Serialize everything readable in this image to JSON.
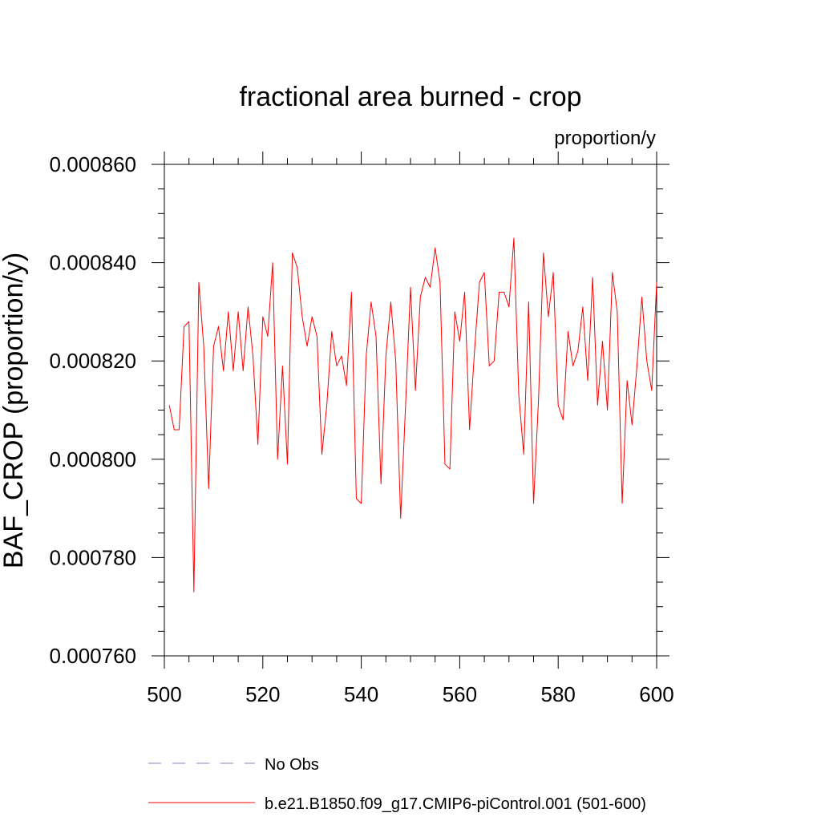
{
  "chart_data": {
    "type": "line",
    "title": "fractional area burned - crop",
    "units_label": "proportion/y",
    "ylabel": "BAF_CROP  (proportion/y)",
    "xlabel": "",
    "xlim": [
      500,
      600
    ],
    "ylim": [
      0.00076,
      0.00086
    ],
    "x_ticks": [
      500,
      520,
      540,
      560,
      580,
      600
    ],
    "x_tick_labels": [
      "500",
      "520",
      "540",
      "560",
      "580",
      "600"
    ],
    "y_ticks": [
      0.00076,
      0.00078,
      0.0008,
      0.00082,
      0.00084,
      0.00086
    ],
    "y_tick_labels": [
      "0.000760",
      "0.000780",
      "0.000800",
      "0.000820",
      "0.000840",
      "0.000860"
    ],
    "grid": false,
    "legend_position": "bottom",
    "series": [
      {
        "name": "No Obs",
        "color": "#8080c0",
        "dashed": true,
        "values": []
      },
      {
        "name": "b.e21.B1850.f09_g17.CMIP6-piControl.001 (501-600)",
        "color": "#ff0000",
        "dashed": false,
        "x": [
          501,
          502,
          503,
          504,
          505,
          506,
          507,
          508,
          509,
          510,
          511,
          512,
          513,
          514,
          515,
          516,
          517,
          518,
          519,
          520,
          521,
          522,
          523,
          524,
          525,
          526,
          527,
          528,
          529,
          530,
          531,
          532,
          533,
          534,
          535,
          536,
          537,
          538,
          539,
          540,
          541,
          542,
          543,
          544,
          545,
          546,
          547,
          548,
          549,
          550,
          551,
          552,
          553,
          554,
          555,
          556,
          557,
          558,
          559,
          560,
          561,
          562,
          563,
          564,
          565,
          566,
          567,
          568,
          569,
          570,
          571,
          572,
          573,
          574,
          575,
          576,
          577,
          578,
          579,
          580,
          581,
          582,
          583,
          584,
          585,
          586,
          587,
          588,
          589,
          590,
          591,
          592,
          593,
          594,
          595,
          596,
          597,
          598,
          599,
          600
        ],
        "values": [
          0.000811,
          0.000806,
          0.000806,
          0.000827,
          0.000828,
          0.000773,
          0.000836,
          0.000823,
          0.000794,
          0.000823,
          0.000827,
          0.000818,
          0.00083,
          0.000818,
          0.00083,
          0.000818,
          0.000831,
          0.000821,
          0.000803,
          0.000829,
          0.000825,
          0.00084,
          0.0008,
          0.000819,
          0.000799,
          0.000842,
          0.000839,
          0.000829,
          0.000823,
          0.000829,
          0.000825,
          0.000801,
          0.000811,
          0.000826,
          0.000819,
          0.000821,
          0.000815,
          0.000834,
          0.000792,
          0.000791,
          0.000821,
          0.000832,
          0.000825,
          0.000795,
          0.000821,
          0.000832,
          0.00082,
          0.000788,
          0.000811,
          0.000835,
          0.000814,
          0.000833,
          0.000837,
          0.000835,
          0.000843,
          0.000836,
          0.000799,
          0.000798,
          0.00083,
          0.000824,
          0.000834,
          0.000806,
          0.000822,
          0.000836,
          0.000838,
          0.000819,
          0.00082,
          0.000834,
          0.000834,
          0.000831,
          0.000845,
          0.000813,
          0.000801,
          0.000832,
          0.000791,
          0.000812,
          0.000842,
          0.000829,
          0.000838,
          0.000811,
          0.000808,
          0.000826,
          0.000819,
          0.000822,
          0.000831,
          0.000816,
          0.000837,
          0.000811,
          0.000824,
          0.00081,
          0.000838,
          0.00083,
          0.000791,
          0.000816,
          0.000807,
          0.000819,
          0.000833,
          0.00082,
          0.000814,
          0.000836
        ]
      }
    ]
  }
}
